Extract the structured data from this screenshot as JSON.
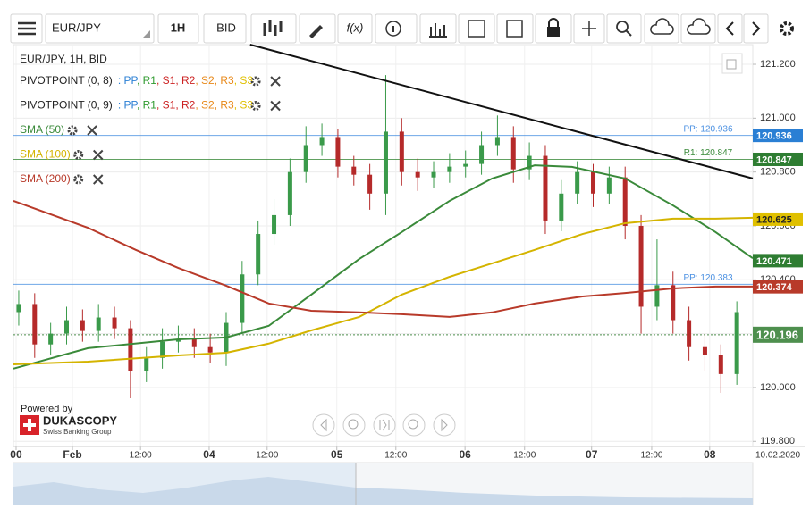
{
  "toolbar": {
    "instrument": "EUR/JPY",
    "period": "1H",
    "side": "BID",
    "fx": "f(x)"
  },
  "legend": {
    "heading": "EUR/JPY, 1H, BID",
    "indicators": [
      {
        "name": "PIVOTPOINT (0, 8)",
        "color": "#222222",
        "items": [
          {
            "text": ": PP",
            "color": "#2a7fd4"
          },
          {
            "text": ", R1",
            "color": "#2e9a2e"
          },
          {
            "text": ", S1",
            "color": "#cc2222"
          },
          {
            "text": ", R2",
            "color": "#cc2222"
          },
          {
            "text": ", S2",
            "color": "#e8891a"
          },
          {
            "text": ", R3",
            "color": "#e8891a"
          },
          {
            "text": ", S3",
            "color": "#e0c000"
          }
        ]
      },
      {
        "name": "PIVOTPOINT (0, 9)",
        "color": "#222222",
        "items": [
          {
            "text": ": PP",
            "color": "#2a7fd4"
          },
          {
            "text": ", R1",
            "color": "#2e9a2e"
          },
          {
            "text": ", S1",
            "color": "#cc2222"
          },
          {
            "text": ", R2",
            "color": "#cc2222"
          },
          {
            "text": ", S2",
            "color": "#e8891a"
          },
          {
            "text": ", R3",
            "color": "#e8891a"
          },
          {
            "text": ", S3",
            "color": "#e0c000"
          }
        ]
      },
      {
        "name": "SMA (50)",
        "color": "#3a8a3a",
        "items": []
      },
      {
        "name": "SMA (100)",
        "color": "#d4b400",
        "items": []
      },
      {
        "name": "SMA (200)",
        "color": "#b83a2a",
        "items": []
      }
    ]
  },
  "footer": {
    "powered": "Powered by",
    "brand": "DUKASCOPY",
    "tagline": "Swiss Banking Group"
  },
  "chart_data": {
    "type": "candlestick",
    "xlim": [
      0,
      139
    ],
    "ylim": [
      119.781,
      121.273
    ],
    "xticks": [
      {
        "value": 0.5,
        "label": "00"
      },
      {
        "value": 11.1,
        "label": "Feb"
      },
      {
        "value": 23.9,
        "label": "12:00"
      },
      {
        "value": 36.8,
        "label": "04"
      },
      {
        "value": 47.7,
        "label": "12:00"
      },
      {
        "value": 60.8,
        "label": "05"
      },
      {
        "value": 71.9,
        "label": "12:00"
      },
      {
        "value": 84.9,
        "label": "06"
      },
      {
        "value": 96.1,
        "label": "12:00"
      },
      {
        "value": 108.7,
        "label": "07"
      },
      {
        "value": 120,
        "label": "12:00"
      },
      {
        "value": 130.9,
        "label": "08"
      }
    ],
    "date_label": "10.02.2020",
    "yticks": [
      {
        "value": 119.8,
        "label": "119.800"
      },
      {
        "value": 120.0,
        "label": "120.000"
      },
      {
        "value": 120.2,
        "label": "120.200"
      },
      {
        "value": 120.4,
        "label": "120.400"
      },
      {
        "value": 120.6,
        "label": "120.600"
      },
      {
        "value": 120.8,
        "label": "120.800"
      },
      {
        "value": 121.0,
        "label": "121.000"
      },
      {
        "value": 121.2,
        "label": "121.200"
      }
    ],
    "grid": true,
    "up_color": "#3a9a4a",
    "down_color": "#b52a2a",
    "x": [
      1,
      4,
      7,
      10,
      13,
      16,
      19,
      22,
      25,
      28,
      31,
      34,
      37,
      40,
      43,
      46,
      49,
      52,
      55,
      58,
      61,
      64,
      67,
      70,
      73,
      76,
      79,
      82,
      85,
      88,
      91,
      94,
      97,
      100,
      103,
      106,
      109,
      112,
      115,
      118,
      121,
      124,
      127,
      130,
      133,
      136
    ],
    "open": [
      120.28,
      120.31,
      120.16,
      120.2,
      120.25,
      120.21,
      120.26,
      120.22,
      120.06,
      120.11,
      120.17,
      120.18,
      120.15,
      120.13,
      120.24,
      120.42,
      120.57,
      120.64,
      120.8,
      120.9,
      120.93,
      120.82,
      120.79,
      120.72,
      120.95,
      120.8,
      120.78,
      120.8,
      120.82,
      120.83,
      120.9,
      120.93,
      120.81,
      120.86,
      120.62,
      120.72,
      120.8,
      120.72,
      120.78,
      120.6,
      120.3,
      120.38,
      120.25,
      120.15,
      120.12,
      120.05
    ],
    "high": [
      120.36,
      120.35,
      120.24,
      120.3,
      120.29,
      120.31,
      120.3,
      120.25,
      120.15,
      120.22,
      120.23,
      120.22,
      120.2,
      120.28,
      120.47,
      120.62,
      120.7,
      120.85,
      120.97,
      120.98,
      120.96,
      120.86,
      120.83,
      121.16,
      121.0,
      120.85,
      120.84,
      120.87,
      120.88,
      120.95,
      121.01,
      120.97,
      120.91,
      120.9,
      120.77,
      120.84,
      120.83,
      120.82,
      120.82,
      120.64,
      120.55,
      120.43,
      120.3,
      120.2,
      120.16,
      120.32
    ],
    "low": [
      120.23,
      120.11,
      120.12,
      120.16,
      120.17,
      120.17,
      120.18,
      119.96,
      120.02,
      120.07,
      120.13,
      120.11,
      120.09,
      120.08,
      120.2,
      120.38,
      120.53,
      120.6,
      120.76,
      120.86,
      120.78,
      120.75,
      120.66,
      120.64,
      120.75,
      120.73,
      120.74,
      120.76,
      120.78,
      120.79,
      120.86,
      120.76,
      120.77,
      120.57,
      120.58,
      120.68,
      120.67,
      120.68,
      120.55,
      120.2,
      120.25,
      120.2,
      120.1,
      120.06,
      119.98,
      120.01
    ],
    "close": [
      120.31,
      120.16,
      120.2,
      120.25,
      120.21,
      120.26,
      120.22,
      120.06,
      120.11,
      120.17,
      120.18,
      120.15,
      120.13,
      120.24,
      120.42,
      120.57,
      120.64,
      120.8,
      120.9,
      120.93,
      120.82,
      120.79,
      120.72,
      120.95,
      120.8,
      120.78,
      120.8,
      120.82,
      120.83,
      120.9,
      120.93,
      120.81,
      120.86,
      120.62,
      120.72,
      120.8,
      120.72,
      120.78,
      120.6,
      120.3,
      120.38,
      120.25,
      120.15,
      120.12,
      120.05,
      120.28
    ],
    "lines": [
      {
        "name": "SMA (50)",
        "color": "#3a8a3a",
        "x": [
          0,
          14,
          31,
          40,
          48,
          56,
          65,
          73,
          82,
          90,
          98,
          105,
          115,
          124,
          132,
          139
        ],
        "values": [
          120.07,
          120.146,
          120.179,
          120.186,
          120.229,
          120.345,
          120.477,
          120.577,
          120.693,
          120.776,
          120.825,
          120.819,
          120.776,
          120.676,
          120.577,
          120.48
        ]
      },
      {
        "name": "SMA (100)",
        "color": "#d4b400",
        "x": [
          0,
          14,
          31,
          40,
          48,
          56,
          65,
          73,
          82,
          90,
          98,
          107,
          115,
          124,
          132,
          139
        ],
        "values": [
          120.086,
          120.096,
          120.119,
          120.129,
          120.163,
          120.212,
          120.262,
          120.345,
          120.411,
          120.461,
          120.511,
          120.57,
          120.61,
          120.627,
          120.627,
          120.63
        ]
      },
      {
        "name": "SMA (200)",
        "color": "#b83a2a",
        "x": [
          0,
          14,
          23,
          31,
          40,
          48,
          56,
          65,
          73,
          82,
          90,
          98,
          107,
          115,
          124,
          132,
          139
        ],
        "values": [
          120.693,
          120.593,
          120.511,
          120.444,
          120.378,
          120.312,
          120.285,
          120.279,
          120.272,
          120.262,
          120.279,
          120.312,
          120.338,
          120.351,
          120.368,
          120.375,
          120.375
        ]
      },
      {
        "name": "trendline",
        "color": "#111111",
        "x": [
          44.5,
          139
        ],
        "values": [
          121.273,
          120.776
        ]
      }
    ],
    "levels": [
      {
        "label": "PP: 120.936",
        "value": 120.936,
        "color": "#4a90e2"
      },
      {
        "label": "R1: 120.847",
        "value": 120.847,
        "color": "#3a8a3a"
      },
      {
        "label": "PP: 120.383",
        "value": 120.383,
        "color": "#4a90e2"
      }
    ],
    "current_price": 120.196,
    "price_tags": [
      {
        "value": 120.936,
        "color": "#2a7fd4"
      },
      {
        "value": 120.847,
        "color": "#2e7d32"
      },
      {
        "value": 120.625,
        "color": "#e0c000"
      },
      {
        "value": 120.471,
        "color": "#2e7d32"
      },
      {
        "value": 120.374,
        "color": "#b83a2a"
      },
      {
        "value": 120.196,
        "color": "#4e8f4e"
      }
    ]
  }
}
